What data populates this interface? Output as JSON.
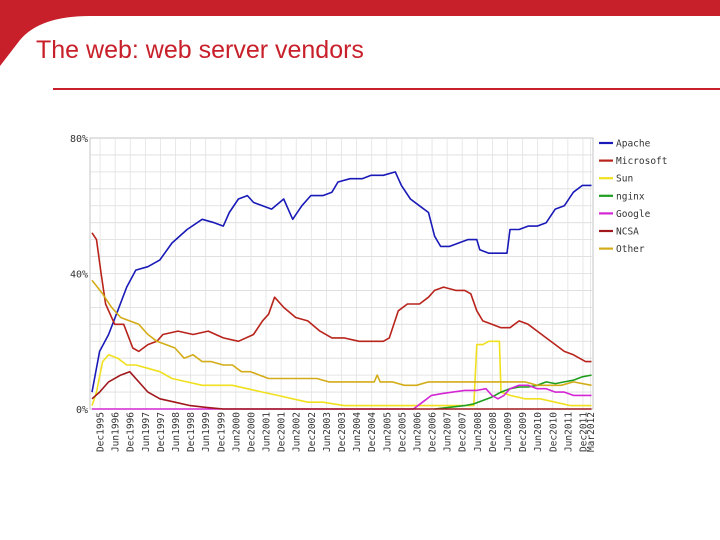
{
  "slide": {
    "title": "The web:  web server vendors"
  },
  "colors": {
    "accent": "#c8202a"
  },
  "chart_data": {
    "type": "line",
    "title": "",
    "xlabel": "",
    "ylabel": "",
    "ylim": [
      0,
      80
    ],
    "grid": true,
    "legend_position": "right",
    "y_ticks": [
      {
        "value": 80,
        "label": "80%"
      },
      {
        "value": 40,
        "label": "40%"
      },
      {
        "value": 0,
        "label": "0%"
      }
    ],
    "x_ticks": [
      "Dec1995",
      "Jun1996",
      "Dec1996",
      "Jun1997",
      "Dec1997",
      "Jun1998",
      "Dec1998",
      "Jun1999",
      "Dec1999",
      "Jun2000",
      "Dec2000",
      "Jun2001",
      "Dec2001",
      "Jun2002",
      "Dec2002",
      "Jun2003",
      "Dec2003",
      "Jun2004",
      "Dec2004",
      "Jun2005",
      "Dec2005",
      "Jun2006",
      "Dec2006",
      "Jun2007",
      "Dec2007",
      "Jun2008",
      "Dec2008",
      "Jun2009",
      "Dec2009",
      "Jun2010",
      "Dec2010",
      "Jun2011",
      "Dec2011",
      "Mar2012"
    ],
    "series": [
      {
        "name": "Apache",
        "color": "#1a1ab8",
        "points": [
          [
            1995.65,
            5
          ],
          [
            1995.9,
            17
          ],
          [
            1996.2,
            22
          ],
          [
            1996.5,
            29
          ],
          [
            1996.8,
            36
          ],
          [
            1997.1,
            41
          ],
          [
            1997.5,
            42
          ],
          [
            1997.9,
            44
          ],
          [
            1998.3,
            49
          ],
          [
            1998.8,
            53
          ],
          [
            1999.3,
            56
          ],
          [
            1999.7,
            55
          ],
          [
            2000.0,
            54
          ],
          [
            2000.2,
            58
          ],
          [
            2000.5,
            62
          ],
          [
            2000.8,
            63
          ],
          [
            2001.0,
            61
          ],
          [
            2001.3,
            60
          ],
          [
            2001.6,
            59
          ],
          [
            2002.0,
            62
          ],
          [
            2002.3,
            56
          ],
          [
            2002.6,
            60
          ],
          [
            2002.9,
            63
          ],
          [
            2003.3,
            63
          ],
          [
            2003.6,
            64
          ],
          [
            2003.8,
            67
          ],
          [
            2004.2,
            68
          ],
          [
            2004.6,
            68
          ],
          [
            2004.9,
            69
          ],
          [
            2005.3,
            69
          ],
          [
            2005.7,
            70
          ],
          [
            2005.9,
            66
          ],
          [
            2006.2,
            62
          ],
          [
            2006.5,
            60
          ],
          [
            2006.8,
            58
          ],
          [
            2007.0,
            51
          ],
          [
            2007.2,
            48
          ],
          [
            2007.5,
            48
          ],
          [
            2007.8,
            49
          ],
          [
            2008.1,
            50
          ],
          [
            2008.4,
            50
          ],
          [
            2008.5,
            47
          ],
          [
            2008.8,
            46
          ],
          [
            2009.1,
            46
          ],
          [
            2009.4,
            46
          ],
          [
            2009.5,
            53
          ],
          [
            2009.8,
            53
          ],
          [
            2010.1,
            54
          ],
          [
            2010.4,
            54
          ],
          [
            2010.7,
            55
          ],
          [
            2011.0,
            59
          ],
          [
            2011.3,
            60
          ],
          [
            2011.6,
            64
          ],
          [
            2011.9,
            66
          ],
          [
            2012.2,
            66
          ]
        ]
      },
      {
        "name": "Microsoft",
        "color": "#b8241b",
        "points": [
          [
            1995.65,
            52
          ],
          [
            1995.8,
            50
          ],
          [
            1995.95,
            40
          ],
          [
            1996.1,
            31
          ],
          [
            1996.4,
            25
          ],
          [
            1996.7,
            25
          ],
          [
            1997.0,
            18
          ],
          [
            1997.2,
            17
          ],
          [
            1997.5,
            19
          ],
          [
            1997.8,
            20
          ],
          [
            1998.0,
            22
          ],
          [
            1998.5,
            23
          ],
          [
            1999.0,
            22
          ],
          [
            1999.5,
            23
          ],
          [
            2000.0,
            21
          ],
          [
            2000.5,
            20
          ],
          [
            2001.0,
            22
          ],
          [
            2001.3,
            26
          ],
          [
            2001.5,
            28
          ],
          [
            2001.7,
            33
          ],
          [
            2002.0,
            30
          ],
          [
            2002.4,
            27
          ],
          [
            2002.8,
            26
          ],
          [
            2003.2,
            23
          ],
          [
            2003.6,
            21
          ],
          [
            2004.0,
            21
          ],
          [
            2004.5,
            20
          ],
          [
            2005.0,
            20
          ],
          [
            2005.3,
            20
          ],
          [
            2005.5,
            21
          ],
          [
            2005.8,
            29
          ],
          [
            2006.1,
            31
          ],
          [
            2006.5,
            31
          ],
          [
            2006.8,
            33
          ],
          [
            2007.0,
            35
          ],
          [
            2007.3,
            36
          ],
          [
            2007.7,
            35
          ],
          [
            2008.0,
            35
          ],
          [
            2008.2,
            34
          ],
          [
            2008.4,
            29
          ],
          [
            2008.6,
            26
          ],
          [
            2008.9,
            25
          ],
          [
            2009.2,
            24
          ],
          [
            2009.5,
            24
          ],
          [
            2009.8,
            26
          ],
          [
            2010.1,
            25
          ],
          [
            2010.4,
            23
          ],
          [
            2010.7,
            21
          ],
          [
            2011.0,
            19
          ],
          [
            2011.3,
            17
          ],
          [
            2011.6,
            16
          ],
          [
            2012.0,
            14
          ],
          [
            2012.2,
            14
          ]
        ]
      },
      {
        "name": "Sun",
        "color": "#f0e01e",
        "points": [
          [
            1995.65,
            1
          ],
          [
            1995.8,
            5
          ],
          [
            1996.0,
            14
          ],
          [
            1996.2,
            16
          ],
          [
            1996.5,
            15
          ],
          [
            1996.8,
            13
          ],
          [
            1997.1,
            13
          ],
          [
            1997.5,
            12
          ],
          [
            1997.9,
            11
          ],
          [
            1998.3,
            9
          ],
          [
            1998.8,
            8
          ],
          [
            1999.3,
            7
          ],
          [
            1999.8,
            7
          ],
          [
            2000.3,
            7
          ],
          [
            2000.8,
            6
          ],
          [
            2001.3,
            5
          ],
          [
            2001.8,
            4
          ],
          [
            2002.3,
            3
          ],
          [
            2002.8,
            2
          ],
          [
            2003.3,
            2
          ],
          [
            2004.0,
            1
          ],
          [
            2005.0,
            1
          ],
          [
            2006.0,
            1
          ],
          [
            2007.0,
            1
          ],
          [
            2008.0,
            1
          ],
          [
            2008.3,
            1
          ],
          [
            2008.4,
            19
          ],
          [
            2008.6,
            19
          ],
          [
            2008.8,
            20
          ],
          [
            2009.0,
            20
          ],
          [
            2009.15,
            20
          ],
          [
            2009.2,
            5
          ],
          [
            2009.5,
            4
          ],
          [
            2010.0,
            3
          ],
          [
            2010.5,
            3
          ],
          [
            2011.0,
            2
          ],
          [
            2011.5,
            1
          ],
          [
            2012.2,
            1
          ]
        ]
      },
      {
        "name": "nginx",
        "color": "#1e9e1e",
        "points": [
          [
            2007.0,
            0
          ],
          [
            2007.5,
            0.5
          ],
          [
            2008.0,
            1
          ],
          [
            2008.3,
            1.5
          ],
          [
            2008.6,
            2.5
          ],
          [
            2008.9,
            3.5
          ],
          [
            2009.2,
            5
          ],
          [
            2009.5,
            6
          ],
          [
            2009.8,
            6.5
          ],
          [
            2010.1,
            6.5
          ],
          [
            2010.4,
            7
          ],
          [
            2010.7,
            8
          ],
          [
            2011.0,
            7.5
          ],
          [
            2011.3,
            8
          ],
          [
            2011.6,
            8.5
          ],
          [
            2011.9,
            9.5
          ],
          [
            2012.2,
            10
          ]
        ]
      },
      {
        "name": "Google",
        "color": "#d426d4",
        "points": [
          [
            1995.65,
            0
          ],
          [
            2006.3,
            0
          ],
          [
            2006.6,
            2
          ],
          [
            2006.9,
            4
          ],
          [
            2007.2,
            4.5
          ],
          [
            2007.6,
            5
          ],
          [
            2008.0,
            5.5
          ],
          [
            2008.4,
            5.5
          ],
          [
            2008.7,
            6
          ],
          [
            2008.9,
            4
          ],
          [
            2009.1,
            3
          ],
          [
            2009.3,
            4
          ],
          [
            2009.5,
            6
          ],
          [
            2009.8,
            7
          ],
          [
            2010.1,
            7
          ],
          [
            2010.4,
            6
          ],
          [
            2010.7,
            6
          ],
          [
            2011.0,
            5
          ],
          [
            2011.3,
            5
          ],
          [
            2011.6,
            4
          ],
          [
            2012.2,
            4
          ]
        ]
      },
      {
        "name": "NCSA",
        "color": "#a0181c",
        "points": [
          [
            1995.65,
            3
          ],
          [
            1995.9,
            5
          ],
          [
            1996.2,
            8
          ],
          [
            1996.6,
            10
          ],
          [
            1996.9,
            11
          ],
          [
            1997.2,
            8
          ],
          [
            1997.5,
            5
          ],
          [
            1997.9,
            3
          ],
          [
            1998.4,
            2
          ],
          [
            1998.9,
            1
          ],
          [
            1999.4,
            0.5
          ],
          [
            2000.0,
            0
          ],
          [
            2012.2,
            0
          ]
        ]
      },
      {
        "name": "Other",
        "color": "#d4ac18",
        "points": [
          [
            1995.65,
            38
          ],
          [
            1996.0,
            34
          ],
          [
            1996.3,
            30
          ],
          [
            1996.6,
            27
          ],
          [
            1996.9,
            26
          ],
          [
            1997.2,
            25
          ],
          [
            1997.5,
            22
          ],
          [
            1997.8,
            20
          ],
          [
            1998.1,
            19
          ],
          [
            1998.4,
            18
          ],
          [
            1998.7,
            15
          ],
          [
            1999.0,
            16
          ],
          [
            1999.3,
            14
          ],
          [
            1999.6,
            14
          ],
          [
            2000.0,
            13
          ],
          [
            2000.3,
            13
          ],
          [
            2000.6,
            11
          ],
          [
            2000.9,
            11
          ],
          [
            2001.2,
            10
          ],
          [
            2001.5,
            9
          ],
          [
            2001.9,
            9
          ],
          [
            2002.3,
            9
          ],
          [
            2002.7,
            9
          ],
          [
            2003.1,
            9
          ],
          [
            2003.5,
            8
          ],
          [
            2003.9,
            8
          ],
          [
            2004.3,
            8
          ],
          [
            2004.7,
            8
          ],
          [
            2005.0,
            8
          ],
          [
            2005.1,
            10
          ],
          [
            2005.2,
            8
          ],
          [
            2005.6,
            8
          ],
          [
            2006.0,
            7
          ],
          [
            2006.4,
            7
          ],
          [
            2006.8,
            8
          ],
          [
            2007.2,
            8
          ],
          [
            2007.6,
            8
          ],
          [
            2008.0,
            8
          ],
          [
            2008.4,
            8
          ],
          [
            2008.8,
            8
          ],
          [
            2009.2,
            8
          ],
          [
            2009.6,
            8
          ],
          [
            2010.0,
            8
          ],
          [
            2010.4,
            7
          ],
          [
            2010.8,
            7
          ],
          [
            2011.2,
            7
          ],
          [
            2011.6,
            8
          ],
          [
            2012.2,
            7
          ]
        ]
      }
    ]
  }
}
